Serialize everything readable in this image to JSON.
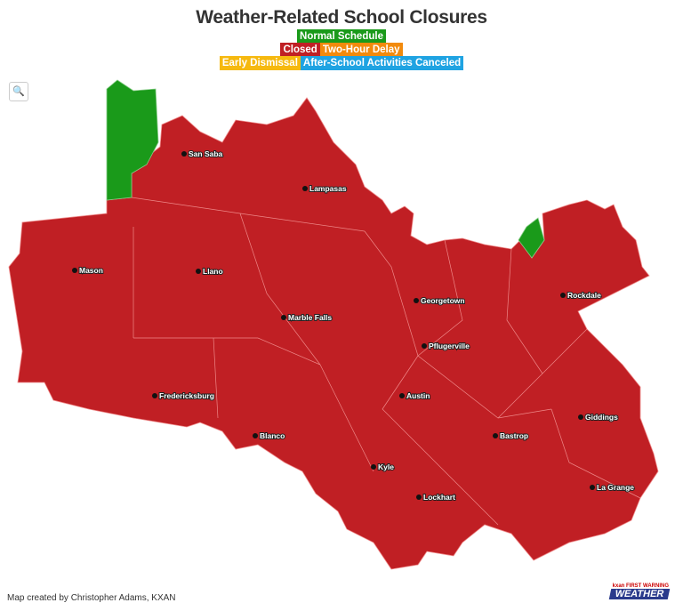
{
  "title": "Weather-Related School Closures",
  "legend": [
    {
      "label": "Normal Schedule",
      "color": "#1a9a1a"
    },
    {
      "label": "Closed",
      "color": "#c01f24"
    },
    {
      "label": "Two-Hour Delay",
      "color": "#f28a0c"
    },
    {
      "label": "Early Dismissal",
      "color": "#f6b90f"
    },
    {
      "label": "After-School Activities Canceled",
      "color": "#1fa3e2"
    }
  ],
  "search_icon": "magnifier-icon",
  "cities": [
    "San Saba",
    "Lampasas",
    "Mason",
    "Llano",
    "Marble Falls",
    "Georgetown",
    "Rockdale",
    "Pflugerville",
    "Austin",
    "Fredericksburg",
    "Giddings",
    "Blanco",
    "Bastrop",
    "Kyle",
    "Lockhart",
    "La Grange"
  ],
  "credit": "Map created by Christopher Adams, KXAN",
  "logo": {
    "small": "kxan FIRST WARNING",
    "big": "WEATHER"
  }
}
